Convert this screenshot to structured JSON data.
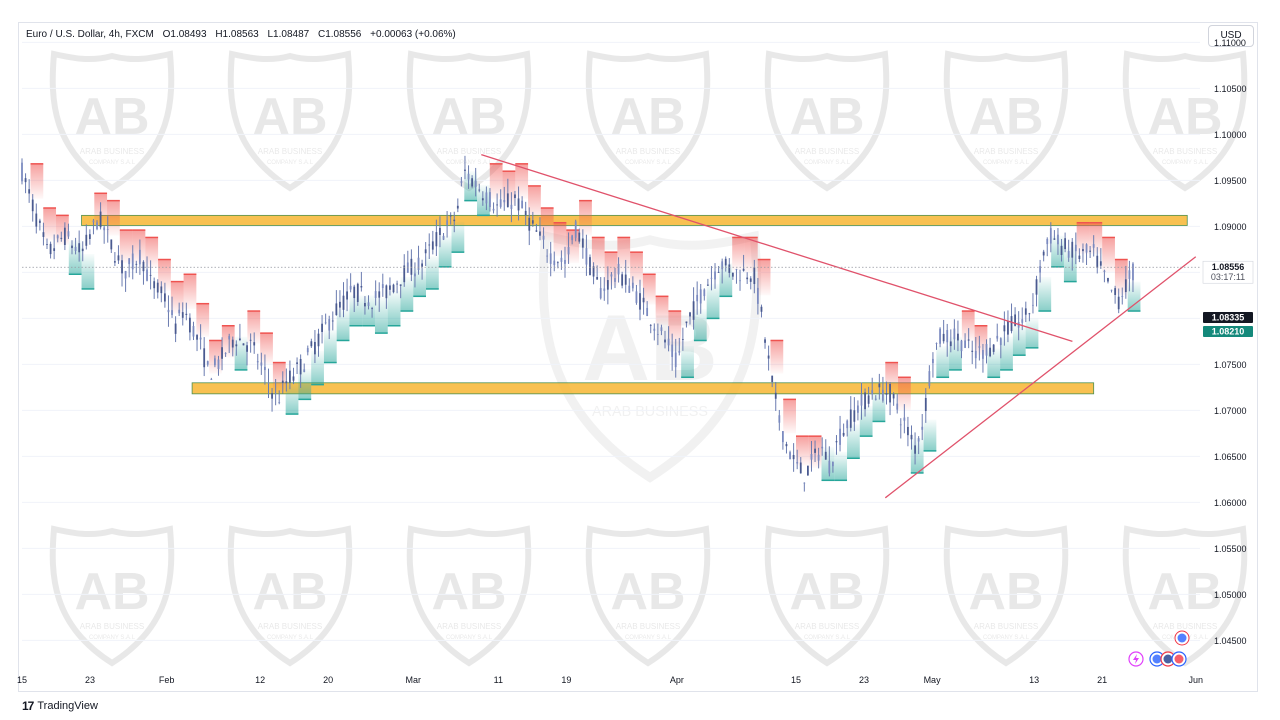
{
  "legend": {
    "symbol": "Euro / U.S. Dollar, 4h, FXCM",
    "open": "O1.08493",
    "high": "H1.08563",
    "low": "L1.08487",
    "close": "C1.08556",
    "change": "+0.00063 (+0.06%)"
  },
  "currency": "USD",
  "footer": {
    "brand": "TradingView"
  },
  "watermark": {
    "text": "ARAB BUSINESS",
    "sub": "COMPANY S.A.L"
  },
  "price_labels": {
    "last": "1.08556",
    "countdown": "03:17:11",
    "upper_band": "1.08335",
    "lower_band": "1.08210"
  },
  "colors": {
    "bull": "#26a69a",
    "bear": "#ef5350",
    "zone": "#f7b733",
    "trend": "#e0526b",
    "candle": "#6a7bb0"
  },
  "chart_data": {
    "type": "line",
    "title": "",
    "xlabel": "",
    "ylabel": "",
    "ylim": [
      1.042,
      1.112
    ],
    "y_ticks": [
      1.045,
      1.05,
      1.055,
      1.06,
      1.065,
      1.07,
      1.075,
      1.08,
      1.085,
      1.09,
      1.095,
      1.1,
      1.105,
      1.11
    ],
    "x_ticks": [
      {
        "label": "15",
        "day": 0
      },
      {
        "label": "23",
        "day": 8
      },
      {
        "label": "Feb",
        "day": 17
      },
      {
        "label": "12",
        "day": 28
      },
      {
        "label": "20",
        "day": 36
      },
      {
        "label": "Mar",
        "day": 46
      },
      {
        "label": "11",
        "day": 56
      },
      {
        "label": "19",
        "day": 64
      },
      {
        "label": "Apr",
        "day": 77
      },
      {
        "label": "15",
        "day": 91
      },
      {
        "label": "23",
        "day": 99
      },
      {
        "label": "May",
        "day": 107
      },
      {
        "label": "13",
        "day": 119
      },
      {
        "label": "21",
        "day": 127
      },
      {
        "label": "Jun",
        "day": 138
      }
    ],
    "x_range": [
      0,
      138.5
    ],
    "series": [
      {
        "type": "price",
        "points": [
          [
            0,
            1.096
          ],
          [
            2,
            1.09
          ],
          [
            3,
            1.087
          ],
          [
            5,
            1.089
          ],
          [
            7,
            1.087
          ],
          [
            9,
            1.091
          ],
          [
            10,
            1.089
          ],
          [
            12,
            1.085
          ],
          [
            14,
            1.087
          ],
          [
            15,
            1.084
          ],
          [
            17,
            1.082
          ],
          [
            18,
            1.079
          ],
          [
            19,
            1.081
          ],
          [
            21,
            1.077
          ],
          [
            22,
            1.074
          ],
          [
            23,
            1.075
          ],
          [
            25,
            1.078
          ],
          [
            27,
            1.077
          ],
          [
            29,
            1.073
          ],
          [
            30,
            1.071
          ],
          [
            31,
            1.073
          ],
          [
            33,
            1.075
          ],
          [
            35,
            1.078
          ],
          [
            37,
            1.081
          ],
          [
            39,
            1.083
          ],
          [
            41,
            1.082
          ],
          [
            43,
            1.083
          ],
          [
            45,
            1.085
          ],
          [
            47,
            1.086
          ],
          [
            49,
            1.089
          ],
          [
            51,
            1.091
          ],
          [
            52,
            1.096
          ],
          [
            54,
            1.094
          ],
          [
            56,
            1.092
          ],
          [
            58,
            1.093
          ],
          [
            60,
            1.09
          ],
          [
            62,
            1.087
          ],
          [
            64,
            1.086
          ],
          [
            65,
            1.09
          ],
          [
            66,
            1.088
          ],
          [
            67,
            1.085
          ],
          [
            68,
            1.083
          ],
          [
            70,
            1.085
          ],
          [
            72,
            1.083
          ],
          [
            74,
            1.08
          ],
          [
            76,
            1.077
          ],
          [
            77,
            1.075
          ],
          [
            78,
            1.079
          ],
          [
            80,
            1.083
          ],
          [
            82,
            1.086
          ],
          [
            84,
            1.085
          ],
          [
            86,
            1.085
          ],
          [
            87,
            1.08
          ],
          [
            88,
            1.074
          ],
          [
            89,
            1.069
          ],
          [
            90,
            1.066
          ],
          [
            91,
            1.064
          ],
          [
            92,
            1.063
          ],
          [
            94,
            1.066
          ],
          [
            95,
            1.064
          ],
          [
            96,
            1.067
          ],
          [
            98,
            1.07
          ],
          [
            100,
            1.072
          ],
          [
            102,
            1.072
          ],
          [
            103,
            1.07
          ],
          [
            104,
            1.068
          ],
          [
            105,
            1.066
          ],
          [
            106,
            1.069
          ],
          [
            107,
            1.076
          ],
          [
            108,
            1.078
          ],
          [
            110,
            1.078
          ],
          [
            112,
            1.076
          ],
          [
            114,
            1.077
          ],
          [
            116,
            1.079
          ],
          [
            118,
            1.08
          ],
          [
            119,
            1.082
          ],
          [
            120,
            1.087
          ],
          [
            121,
            1.089
          ],
          [
            122,
            1.088
          ],
          [
            124,
            1.087
          ],
          [
            126,
            1.087
          ],
          [
            127,
            1.085
          ],
          [
            128,
            1.083
          ],
          [
            129,
            1.082
          ],
          [
            130,
            1.084
          ],
          [
            131,
            1.0855
          ]
        ]
      }
    ],
    "zones": [
      {
        "from_day": 7,
        "to_day": 137,
        "y_top": 1.0912,
        "y_bottom": 1.0901
      },
      {
        "from_day": 20,
        "to_day": 126,
        "y_top": 1.073,
        "y_bottom": 1.0718
      }
    ],
    "trendlines": [
      {
        "from": [
          54,
          1.0978
        ],
        "to": [
          123.5,
          1.0775
        ]
      },
      {
        "from": [
          101.5,
          1.0605
        ],
        "to": [
          138,
          1.0867
        ]
      }
    ],
    "last_price_line": 1.08556
  }
}
